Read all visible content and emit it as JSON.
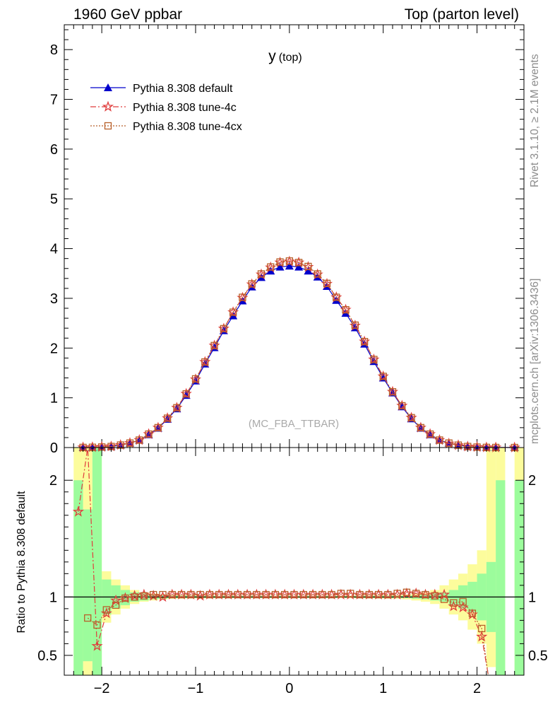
{
  "header": {
    "left": "1960 GeV ppbar",
    "right": "Top (parton level)"
  },
  "side_labels": {
    "rivet": "Rivet 3.1.10, ≥ 2.1M events",
    "mcplots": "mcplots.cern.ch [arXiv:1306.3436]"
  },
  "colors": {
    "default": "#0000cc",
    "tune4c": "#e03c3c",
    "tune4cx": "#b8602a",
    "band_inner": "#9cfc9c",
    "band_outer": "#fcfc9c"
  },
  "chart_data": [
    {
      "type": "line",
      "title": "y",
      "title_sub": "(top)",
      "watermark": "(MC_FBA_TTBAR)",
      "xlim": [
        -2.4,
        2.5
      ],
      "ylim": [
        0,
        8.5
      ],
      "yticks": [
        "0",
        "1",
        "2",
        "3",
        "4",
        "5",
        "6",
        "7",
        "8"
      ],
      "xticks": [
        -2,
        -1,
        0,
        1,
        2
      ],
      "legend_position": "top-left",
      "x": [
        -2.2,
        -2.1,
        -2.0,
        -1.9,
        -1.8,
        -1.7,
        -1.6,
        -1.5,
        -1.4,
        -1.3,
        -1.2,
        -1.1,
        -1.0,
        -0.9,
        -0.8,
        -0.7,
        -0.6,
        -0.5,
        -0.4,
        -0.3,
        -0.2,
        -0.1,
        0.0,
        0.1,
        0.2,
        0.3,
        0.4,
        0.5,
        0.6,
        0.7,
        0.8,
        0.9,
        1.0,
        1.1,
        1.2,
        1.3,
        1.4,
        1.5,
        1.6,
        1.7,
        1.8,
        1.9,
        2.0,
        2.1,
        2.2,
        2.4
      ],
      "series": [
        {
          "name": "Pythia 8.308 default",
          "marker": "triangle",
          "values": [
            0.002,
            0.005,
            0.01,
            0.02,
            0.05,
            0.09,
            0.15,
            0.26,
            0.39,
            0.57,
            0.78,
            1.05,
            1.34,
            1.68,
            2.01,
            2.35,
            2.65,
            2.95,
            3.23,
            3.42,
            3.55,
            3.63,
            3.65,
            3.63,
            3.55,
            3.43,
            3.24,
            2.96,
            2.7,
            2.41,
            2.08,
            1.73,
            1.4,
            1.1,
            0.82,
            0.58,
            0.39,
            0.26,
            0.15,
            0.09,
            0.05,
            0.02,
            0.01,
            0.005,
            0.002,
            0.001
          ]
        },
        {
          "name": "Pythia 8.308 tune-4c",
          "marker": "star",
          "values": [
            0.003,
            0.006,
            0.012,
            0.022,
            0.05,
            0.09,
            0.15,
            0.27,
            0.4,
            0.59,
            0.8,
            1.08,
            1.37,
            1.72,
            2.05,
            2.39,
            2.72,
            3.01,
            3.28,
            3.48,
            3.62,
            3.72,
            3.74,
            3.72,
            3.63,
            3.48,
            3.29,
            3.02,
            2.77,
            2.45,
            2.13,
            1.77,
            1.43,
            1.12,
            0.84,
            0.6,
            0.4,
            0.27,
            0.15,
            0.08,
            0.045,
            0.02,
            0.009,
            0.003,
            0.001,
            0.0
          ]
        },
        {
          "name": "Pythia 8.308 tune-4cx",
          "marker": "open-square",
          "values": [
            0.002,
            0.005,
            0.011,
            0.021,
            0.05,
            0.09,
            0.15,
            0.27,
            0.4,
            0.59,
            0.8,
            1.08,
            1.38,
            1.72,
            2.05,
            2.39,
            2.72,
            3.02,
            3.29,
            3.49,
            3.63,
            3.73,
            3.75,
            3.72,
            3.64,
            3.49,
            3.3,
            3.02,
            2.77,
            2.46,
            2.13,
            1.77,
            1.43,
            1.12,
            0.84,
            0.6,
            0.4,
            0.27,
            0.15,
            0.09,
            0.048,
            0.021,
            0.009,
            0.003,
            0.001,
            0.0
          ]
        }
      ]
    },
    {
      "type": "line",
      "ylabel": "Ratio to Pythia 8.308 default",
      "xlim": [
        -2.4,
        2.5
      ],
      "ylim": [
        0.33,
        2.28
      ],
      "yticks": [
        "0.5",
        "1",
        "2"
      ],
      "xticks": [
        "−2",
        "−1",
        "0",
        "1",
        "2"
      ],
      "reference_line": 1,
      "band": {
        "x_edges": [
          -2.3,
          -2.2,
          -2.1,
          -2.0,
          -1.9,
          -1.8,
          -1.7,
          -1.6,
          -1.5,
          -1.4,
          -1.3,
          -1.2,
          -1.1,
          -1.0,
          -0.9,
          -0.8,
          -0.7,
          -0.6,
          -0.5,
          -0.4,
          -0.3,
          -0.2,
          -0.1,
          0.0,
          0.1,
          0.2,
          0.3,
          0.4,
          0.5,
          0.6,
          0.7,
          0.8,
          0.9,
          1.0,
          1.1,
          1.2,
          1.3,
          1.4,
          1.5,
          1.6,
          1.7,
          1.8,
          1.9,
          2.0,
          2.1,
          2.2,
          2.3,
          2.4,
          2.5
        ],
        "inner": [
          [
            0.3,
            2.0
          ],
          [
            0.45,
            1.75
          ],
          [
            0.2,
            2.3
          ],
          [
            0.85,
            1.15
          ],
          [
            0.9,
            1.1
          ],
          [
            0.93,
            1.06
          ],
          [
            0.96,
            1.04
          ],
          [
            0.97,
            1.03
          ],
          [
            0.98,
            1.02
          ],
          [
            0.985,
            1.015
          ],
          [
            0.99,
            1.01
          ],
          [
            0.99,
            1.01
          ],
          [
            0.99,
            1.01
          ],
          [
            0.992,
            1.008
          ],
          [
            0.992,
            1.008
          ],
          [
            0.993,
            1.007
          ],
          [
            0.993,
            1.007
          ],
          [
            0.993,
            1.007
          ],
          [
            0.994,
            1.006
          ],
          [
            0.994,
            1.006
          ],
          [
            0.994,
            1.006
          ],
          [
            0.994,
            1.006
          ],
          [
            0.994,
            1.006
          ],
          [
            0.994,
            1.006
          ],
          [
            0.994,
            1.006
          ],
          [
            0.994,
            1.006
          ],
          [
            0.994,
            1.006
          ],
          [
            0.994,
            1.006
          ],
          [
            0.993,
            1.007
          ],
          [
            0.993,
            1.007
          ],
          [
            0.993,
            1.007
          ],
          [
            0.992,
            1.008
          ],
          [
            0.992,
            1.008
          ],
          [
            0.99,
            1.01
          ],
          [
            0.99,
            1.01
          ],
          [
            0.99,
            1.01
          ],
          [
            0.985,
            1.015
          ],
          [
            0.98,
            1.02
          ],
          [
            0.97,
            1.03
          ],
          [
            0.96,
            1.04
          ],
          [
            0.93,
            1.06
          ],
          [
            0.9,
            1.1
          ],
          [
            0.87,
            1.13
          ],
          [
            0.8,
            1.2
          ],
          [
            0.7,
            1.3
          ],
          [
            0.3,
            2.0
          ],
          [
            null,
            null
          ],
          [
            0.3,
            2.0
          ]
        ],
        "outer": [
          [
            0.25,
            2.28
          ],
          [
            0.3,
            2.28
          ],
          [
            0.1,
            2.3
          ],
          [
            0.78,
            1.22
          ],
          [
            0.85,
            1.15
          ],
          [
            0.9,
            1.1
          ],
          [
            0.94,
            1.06
          ],
          [
            0.96,
            1.04
          ],
          [
            0.97,
            1.03
          ],
          [
            0.98,
            1.02
          ],
          [
            0.985,
            1.015
          ],
          [
            0.986,
            1.014
          ],
          [
            0.987,
            1.013
          ],
          [
            0.988,
            1.012
          ],
          [
            0.988,
            1.012
          ],
          [
            0.989,
            1.011
          ],
          [
            0.989,
            1.011
          ],
          [
            0.99,
            1.01
          ],
          [
            0.99,
            1.01
          ],
          [
            0.99,
            1.01
          ],
          [
            0.99,
            1.01
          ],
          [
            0.99,
            1.01
          ],
          [
            0.99,
            1.01
          ],
          [
            0.99,
            1.01
          ],
          [
            0.99,
            1.01
          ],
          [
            0.99,
            1.01
          ],
          [
            0.99,
            1.01
          ],
          [
            0.99,
            1.01
          ],
          [
            0.99,
            1.01
          ],
          [
            0.989,
            1.011
          ],
          [
            0.989,
            1.011
          ],
          [
            0.988,
            1.012
          ],
          [
            0.987,
            1.013
          ],
          [
            0.986,
            1.014
          ],
          [
            0.985,
            1.015
          ],
          [
            0.98,
            1.02
          ],
          [
            0.97,
            1.03
          ],
          [
            0.96,
            1.04
          ],
          [
            0.94,
            1.06
          ],
          [
            0.9,
            1.1
          ],
          [
            0.85,
            1.15
          ],
          [
            0.8,
            1.2
          ],
          [
            0.72,
            1.28
          ],
          [
            0.6,
            1.4
          ],
          [
            0.4,
            2.28
          ],
          [
            0.25,
            2.28
          ],
          [
            null,
            null
          ],
          [
            0.25,
            2.28
          ]
        ]
      },
      "series": [
        {
          "name": "Pythia 8.308 tune-4c",
          "x": [
            -2.25,
            -2.15,
            -2.05,
            -1.95,
            -1.85,
            -1.75,
            -1.65,
            -1.55,
            -1.45,
            -1.35,
            -1.25,
            -1.15,
            -1.05,
            -0.95,
            -0.85,
            -0.75,
            -0.65,
            -0.55,
            -0.45,
            -0.35,
            -0.25,
            -0.15,
            -0.05,
            0.05,
            0.15,
            0.25,
            0.35,
            0.45,
            0.55,
            0.65,
            0.75,
            0.85,
            0.95,
            1.05,
            1.15,
            1.25,
            1.35,
            1.45,
            1.55,
            1.65,
            1.75,
            1.85,
            1.95,
            2.05
          ],
          "values": [
            1.73,
            2.3,
            0.58,
            0.86,
            0.97,
            0.99,
            1.01,
            1.02,
            1.01,
            1.0,
            1.02,
            1.02,
            1.02,
            1.01,
            1.02,
            1.02,
            1.02,
            1.02,
            1.02,
            1.02,
            1.02,
            1.02,
            1.02,
            1.02,
            1.02,
            1.02,
            1.02,
            1.02,
            1.02,
            1.02,
            1.02,
            1.02,
            1.02,
            1.02,
            1.02,
            1.03,
            1.03,
            1.02,
            1.02,
            1.02,
            0.92,
            0.91,
            0.85,
            0.66
          ]
        },
        {
          "name": "Pythia 8.308 tune-4cx",
          "x": [
            -2.15,
            -2.05,
            -1.95,
            -1.85,
            -1.75,
            -1.65,
            -1.55,
            -1.45,
            -1.35,
            -1.25,
            -1.15,
            -1.05,
            -0.95,
            -0.85,
            -0.75,
            -0.65,
            -0.55,
            -0.45,
            -0.35,
            -0.25,
            -0.15,
            -0.05,
            0.05,
            0.15,
            0.25,
            0.35,
            0.45,
            0.55,
            0.65,
            0.75,
            0.85,
            0.95,
            1.05,
            1.15,
            1.25,
            1.35,
            1.45,
            1.55,
            1.65,
            1.75,
            1.85,
            1.95,
            2.05
          ],
          "values": [
            0.82,
            0.76,
            0.89,
            0.93,
            0.99,
            1.0,
            1.01,
            1.02,
            1.02,
            1.02,
            1.02,
            1.02,
            1.02,
            1.02,
            1.02,
            1.02,
            1.02,
            1.02,
            1.02,
            1.02,
            1.02,
            1.02,
            1.02,
            1.02,
            1.02,
            1.02,
            1.02,
            1.03,
            1.03,
            1.02,
            1.02,
            1.02,
            1.02,
            1.03,
            1.04,
            1.03,
            1.02,
            1.01,
            0.98,
            0.95,
            0.96,
            0.86,
            0.73
          ]
        }
      ]
    }
  ]
}
